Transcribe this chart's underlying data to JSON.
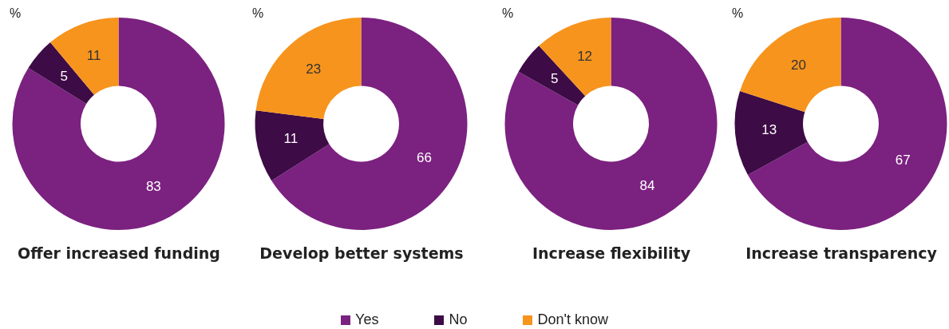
{
  "chart_data": [
    {
      "type": "donut",
      "title": "Offer increased funding",
      "annotations": [
        "%"
      ],
      "categories": [
        "Yes",
        "No",
        "Don't know"
      ],
      "values": [
        83,
        5,
        11
      ],
      "colors": [
        "#7b2180",
        "#3d0b45",
        "#f7941d"
      ],
      "data_labels": true,
      "legend": "bottom"
    },
    {
      "type": "donut",
      "title": "Develop better systems",
      "annotations": [
        "%"
      ],
      "categories": [
        null,
        null,
        null
      ],
      "values": [
        66,
        11,
        23
      ],
      "colors": [
        "#7b2180",
        "#3d0b45",
        "#f7941d"
      ],
      "data_labels": true
    },
    {
      "type": "donut",
      "title": "Increase flexibility",
      "annotations": [
        "%"
      ],
      "categories": [
        null,
        null,
        null
      ],
      "values": [
        84,
        5,
        12
      ],
      "colors": [
        "#7b2180",
        "#3d0b45",
        "#f7941d"
      ],
      "data_labels": true
    },
    {
      "type": "donut",
      "title": "Increase transparency",
      "annotations": [
        "%"
      ],
      "categories": [
        null,
        null,
        null
      ],
      "values": [
        67,
        13,
        20
      ],
      "colors": [
        "#7b2180",
        "#3d0b45",
        "#f7941d"
      ],
      "data_labels": true
    }
  ]
}
